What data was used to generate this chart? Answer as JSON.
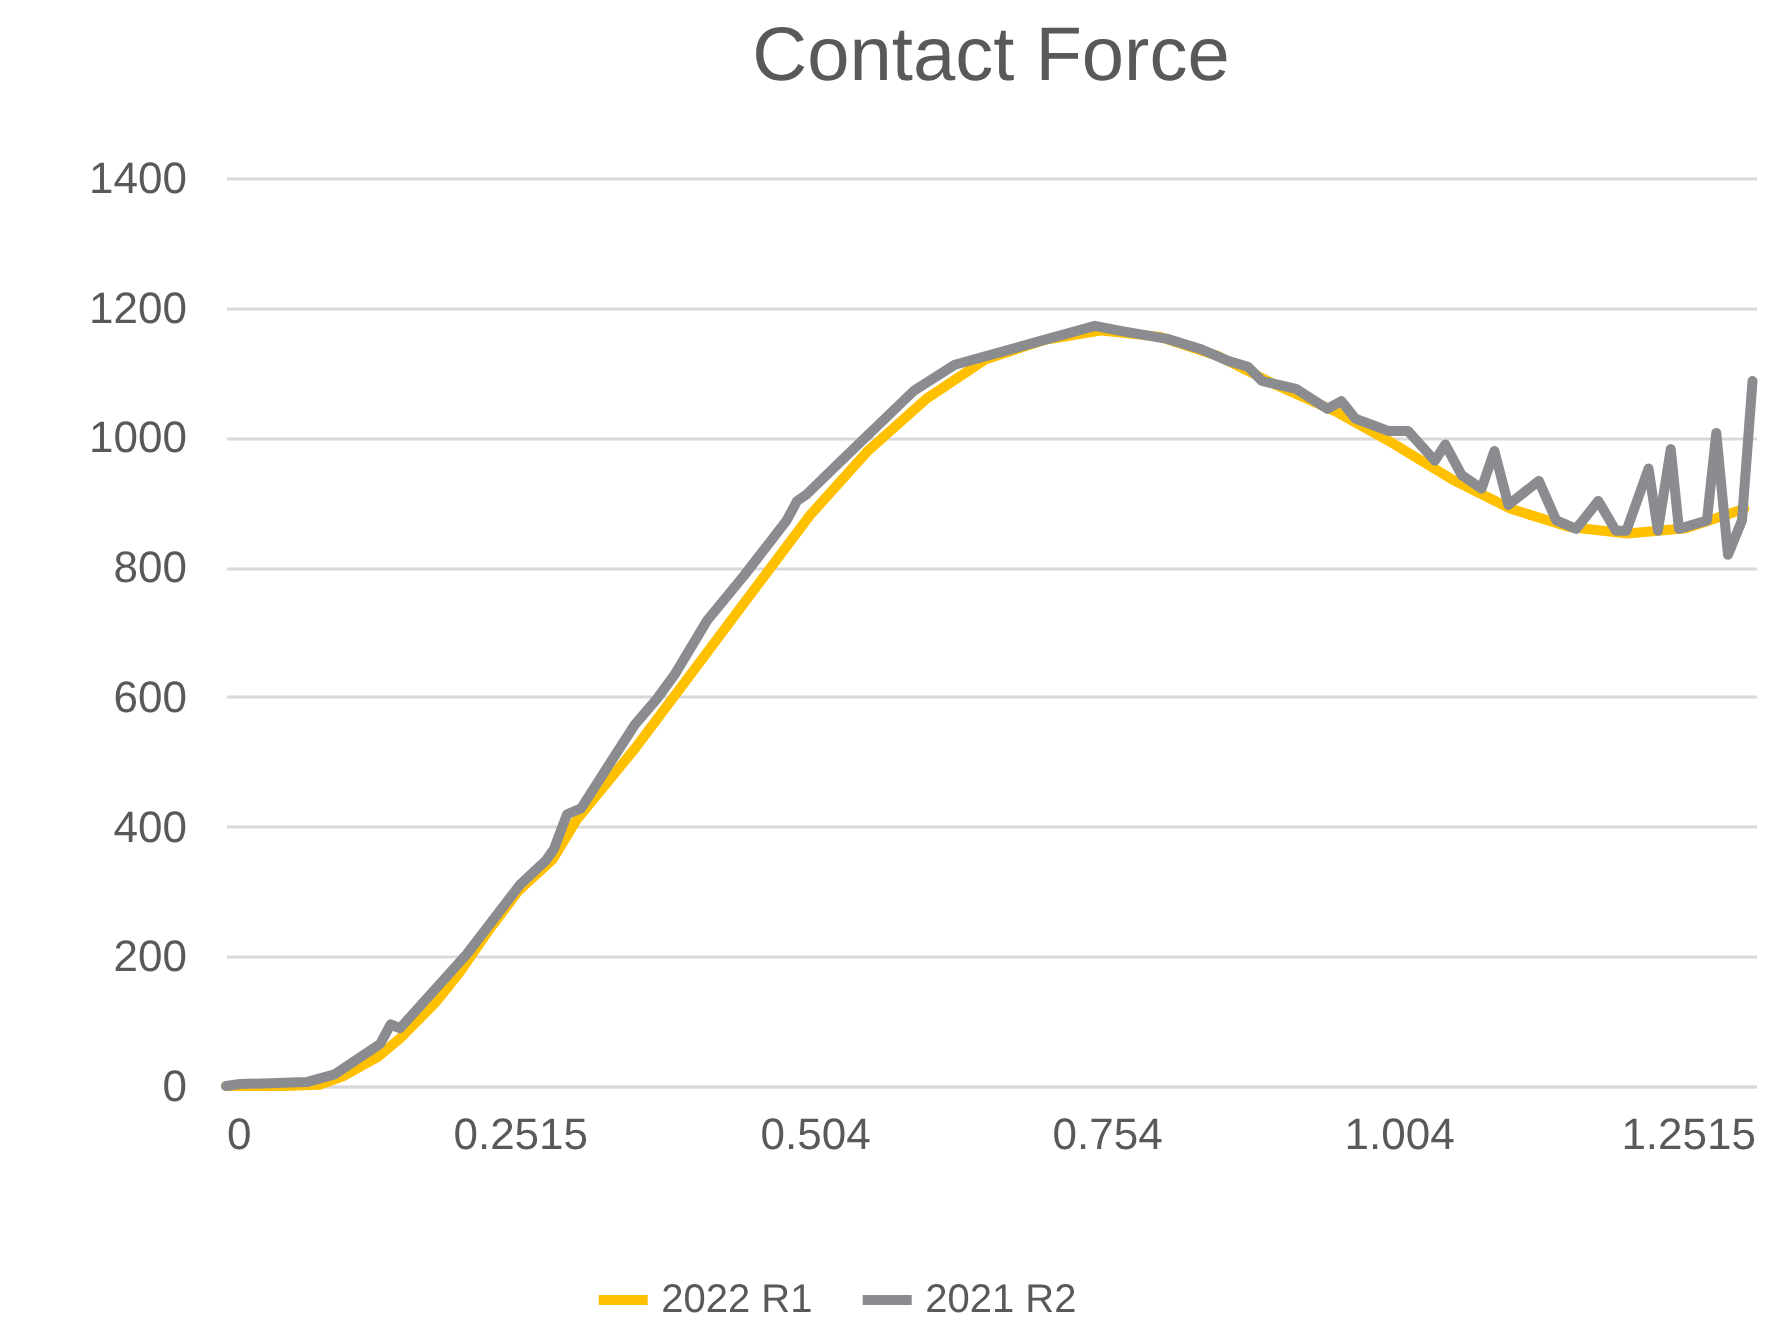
{
  "chart_data": {
    "type": "line",
    "title": "Contact Force",
    "xlim": [
      0,
      1.31
    ],
    "xticks": [
      0,
      0.2515,
      0.504,
      0.754,
      1.004,
      1.2515
    ],
    "ylim": [
      0,
      1400
    ],
    "yticks": [
      0,
      200,
      400,
      600,
      800,
      1000,
      1200,
      1400
    ],
    "grid": "y",
    "legend": "bottom",
    "line_style": "solid",
    "marker": "none",
    "series": [
      {
        "name": "2022 R1",
        "color": "#ffc000",
        "x": [
          0,
          0.05,
          0.08,
          0.1,
          0.13,
          0.15,
          0.18,
          0.2,
          0.225,
          0.25,
          0.28,
          0.3,
          0.35,
          0.4,
          0.45,
          0.5,
          0.55,
          0.6,
          0.65,
          0.7,
          0.75,
          0.8,
          0.85,
          0.9,
          0.95,
          1.0,
          1.05,
          1.1,
          1.15,
          1.2,
          1.25,
          1.3
        ],
        "values": [
          0,
          0,
          2,
          15,
          45,
          75,
          130,
          175,
          240,
          300,
          350,
          410,
          520,
          640,
          760,
          880,
          980,
          1060,
          1120,
          1150,
          1165,
          1155,
          1125,
          1080,
          1040,
          990,
          935,
          890,
          862,
          852,
          860,
          890
        ]
      },
      {
        "name": "2021 R2",
        "color": "#8b8c8f",
        "x": [
          0,
          0.012,
          0.069,
          0.093,
          0.132,
          0.141,
          0.149,
          0.206,
          0.252,
          0.274,
          0.281,
          0.292,
          0.304,
          0.326,
          0.35,
          0.369,
          0.384,
          0.412,
          0.444,
          0.48,
          0.489,
          0.497,
          0.532,
          0.589,
          0.624,
          0.744,
          0.767,
          0.806,
          0.835,
          0.858,
          0.875,
          0.887,
          0.916,
          0.943,
          0.955,
          0.967,
          0.995,
          1.012,
          1.035,
          1.044,
          1.058,
          1.075,
          1.086,
          1.098,
          1.124,
          1.139,
          1.156,
          1.175,
          1.19,
          1.199,
          1.218,
          1.226,
          1.237,
          1.244,
          1.268,
          1.276,
          1.286,
          1.298,
          1.307
        ],
        "values": [
          0,
          3,
          6,
          18,
          65,
          95,
          89,
          203,
          311,
          348,
          366,
          419,
          428,
          490,
          557,
          597,
          634,
          718,
          788,
          872,
          902,
          912,
          973,
          1072,
          1112,
          1172,
          1164,
          1152,
          1136,
          1118,
          1109,
          1087,
          1075,
          1044,
          1056,
          1029,
          1010,
          1010,
          964,
          989,
          942,
          921,
          979,
          896,
          933,
          872,
          859,
          902,
          856,
          856,
          952,
          856,
          982,
          859,
          872,
          1007,
          819,
          872,
          1087
        ]
      }
    ]
  }
}
